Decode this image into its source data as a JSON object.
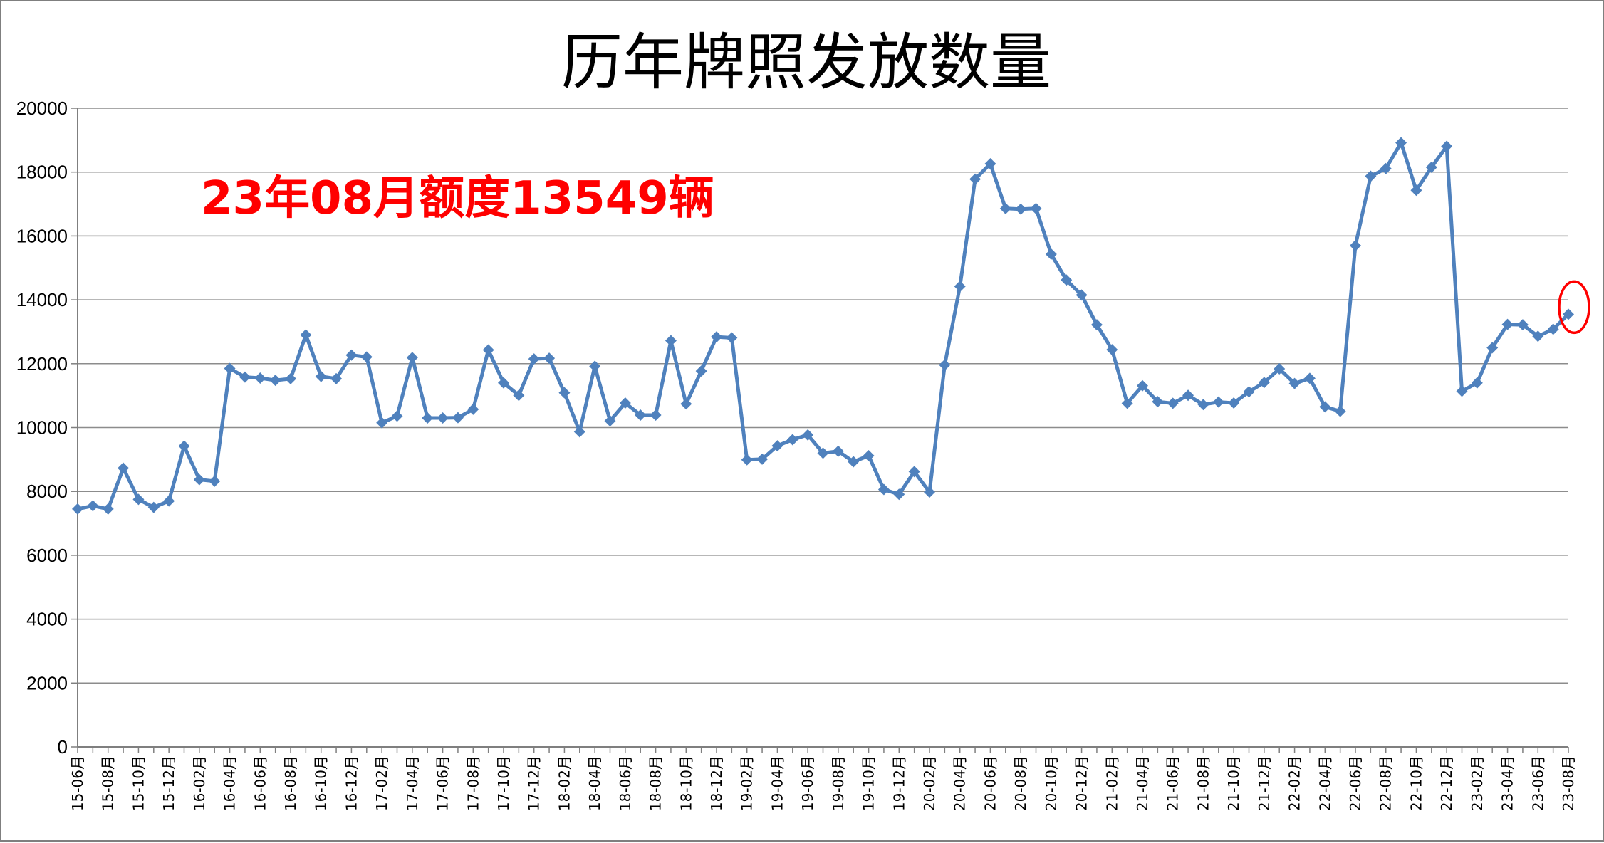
{
  "chart_data": {
    "type": "line",
    "title": "历年牌照发放数量",
    "annotation": "23年08月额度13549辆",
    "xlabel": "",
    "ylabel": "",
    "ylim": [
      0,
      20000
    ],
    "yticks": [
      0,
      2000,
      4000,
      6000,
      8000,
      10000,
      12000,
      14000,
      16000,
      18000,
      20000
    ],
    "grid": true,
    "legend": "none",
    "colors": {
      "series": "#4f81bd",
      "annotation": "#ff0000",
      "highlight": "#ff0000",
      "grid": "#8c8c8c"
    },
    "highlight_last_point": true,
    "x": [
      "15-06月",
      "15-07月",
      "15-08月",
      "15-09月",
      "15-10月",
      "15-11月",
      "15-12月",
      "16-01月",
      "16-02月",
      "16-03月",
      "16-04月",
      "16-05月",
      "16-06月",
      "16-07月",
      "16-08月",
      "16-09月",
      "16-10月",
      "16-11月",
      "16-12月",
      "17-01月",
      "17-02月",
      "17-03月",
      "17-04月",
      "17-05月",
      "17-06月",
      "17-07月",
      "17-08月",
      "17-09月",
      "17-10月",
      "17-11月",
      "17-12月",
      "18-01月",
      "18-02月",
      "18-03月",
      "18-04月",
      "18-05月",
      "18-06月",
      "18-07月",
      "18-08月",
      "18-09月",
      "18-10月",
      "18-11月",
      "18-12月",
      "19-01月",
      "19-02月",
      "19-03月",
      "19-04月",
      "19-05月",
      "19-06月",
      "19-07月",
      "19-08月",
      "19-09月",
      "19-10月",
      "19-11月",
      "19-12月",
      "20-01月",
      "20-02月",
      "20-03月",
      "20-04月",
      "20-05月",
      "20-06月",
      "20-07月",
      "20-08月",
      "20-09月",
      "20-10月",
      "20-11月",
      "20-12月",
      "21-01月",
      "21-02月",
      "21-03月",
      "21-04月",
      "21-05月",
      "21-06月",
      "21-07月",
      "21-08月",
      "21-09月",
      "21-10月",
      "21-11月",
      "21-12月",
      "22-01月",
      "22-02月",
      "22-03月",
      "22-04月",
      "22-05月",
      "22-06月",
      "22-07月",
      "22-08月",
      "22-09月",
      "22-10月",
      "22-11月",
      "22-12月",
      "23-01月",
      "23-02月",
      "23-03月",
      "23-04月",
      "23-05月",
      "23-06月",
      "23-07月",
      "23-08月"
    ],
    "x_tick_labels": [
      "15-06月",
      "15-08月",
      "15-10月",
      "15-12月",
      "16-02月",
      "16-04月",
      "16-06月",
      "16-08月",
      "16-10月",
      "16-12月",
      "17-02月",
      "17-04月",
      "17-06月",
      "17-08月",
      "17-10月",
      "17-12月",
      "18-02月",
      "18-04月",
      "18-06月",
      "18-08月",
      "18-10月",
      "18-12月",
      "19-02月",
      "19-04月",
      "19-06月",
      "19-08月",
      "19-10月",
      "19-12月",
      "20-02月",
      "20-04月",
      "20-06月",
      "20-08月",
      "20-10月",
      "20-12月",
      "21-02月",
      "21-04月",
      "21-06月",
      "21-08月",
      "21-10月",
      "21-12月",
      "22-02月",
      "22-04月",
      "22-06月",
      "22-08月",
      "22-10月",
      "22-12月",
      "23-02月",
      "23-04月",
      "23-06月",
      "23-08月"
    ],
    "series": [
      {
        "name": "",
        "values": [
          7450,
          7550,
          7450,
          8730,
          7750,
          7500,
          7700,
          9420,
          8370,
          8320,
          11850,
          11580,
          11550,
          11480,
          11530,
          12900,
          11600,
          11530,
          12270,
          12210,
          10150,
          10360,
          12190,
          10300,
          10300,
          10310,
          10570,
          12430,
          11400,
          11010,
          12150,
          12170,
          11090,
          9870,
          11920,
          10210,
          10770,
          10390,
          10390,
          12720,
          10740,
          11770,
          12840,
          12810,
          8990,
          9010,
          9430,
          9620,
          9770,
          9200,
          9260,
          8930,
          9120,
          8060,
          7910,
          8620,
          7980,
          11960,
          14420,
          17780,
          18260,
          16860,
          16840,
          16860,
          15430,
          14620,
          14150,
          13220,
          12440,
          10760,
          11310,
          10810,
          10760,
          11010,
          10720,
          10800,
          10770,
          11120,
          11410,
          11840,
          11380,
          11540,
          10650,
          10510,
          15700,
          17870,
          18110,
          18920,
          17430,
          18150,
          18810,
          11140,
          11400,
          12500,
          13230,
          13220,
          12860,
          13080,
          13549
        ]
      }
    ]
  }
}
